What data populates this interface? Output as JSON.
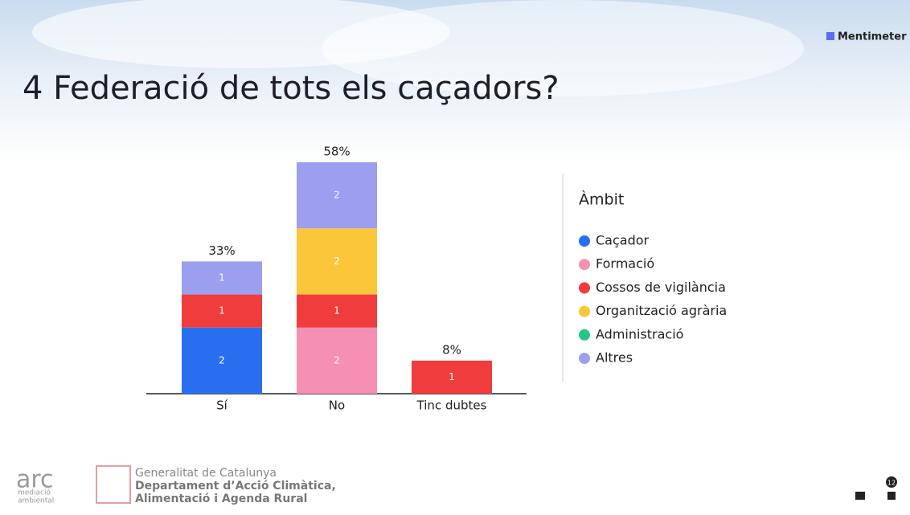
{
  "brand": "Mentimeter",
  "chart_data": {
    "type": "stacked-bar",
    "title": "4 Federació de tots els caçadors?",
    "categories": [
      "Sí",
      "No",
      "Tinc dubtes"
    ],
    "series": [
      {
        "name": "Caçador",
        "color": "#2a6ef0",
        "values": [
          2,
          0,
          0
        ]
      },
      {
        "name": "Formació",
        "color": "#f590b4",
        "values": [
          0,
          2,
          0
        ]
      },
      {
        "name": "Cossos de vigilància",
        "color": "#f03c3c",
        "values": [
          1,
          1,
          1
        ]
      },
      {
        "name": "Organització agrària",
        "color": "#fbc63a",
        "values": [
          0,
          2,
          0
        ]
      },
      {
        "name": "Administració",
        "color": "#26c485",
        "values": [
          0,
          0,
          0
        ]
      },
      {
        "name": "Altres",
        "color": "#9c9ef0",
        "values": [
          1,
          2,
          0
        ]
      }
    ],
    "percentages": [
      "33%",
      "58%",
      "8%"
    ],
    "legend_title": "Àmbit",
    "legend": "right"
  },
  "footer": {
    "arc": "arc",
    "arc_sub": [
      "mediació",
      "ambiental"
    ],
    "gov": [
      "Generalitat de Catalunya",
      "Departament d’Acció Climàtica,",
      "Alimentació i Agenda Rural"
    ]
  },
  "participants": "12"
}
